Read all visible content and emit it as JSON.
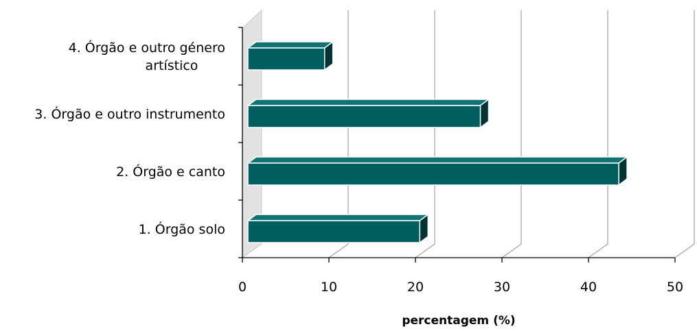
{
  "chart_data": {
    "type": "bar",
    "orientation": "horizontal",
    "style": "3d",
    "categories": [
      "1. Órgão solo",
      "2. Órgão e canto",
      "3. Órgão e outro instrumento",
      "4. Órgão e outro género artístico"
    ],
    "category_lines": [
      [
        "1. Órgão solo"
      ],
      [
        "2. Órgão e canto"
      ],
      [
        "3. Órgão e outro instrumento"
      ],
      [
        "4. Órgão e outro género",
        "artístico"
      ]
    ],
    "values": [
      20.5,
      43.5,
      27.5,
      9.5
    ],
    "xlim": [
      0,
      50
    ],
    "xticks": [
      0,
      10,
      20,
      30,
      40,
      50
    ],
    "xlabel": "percentagem (%)",
    "ylabel": "",
    "title": "",
    "grid": "vertical",
    "legend": "none",
    "colors": {
      "bar_front": "#006060",
      "bar_top": "#127373",
      "bar_side": "#003434",
      "bar_edge": "#ffffff",
      "gridline": "#a6a6a6",
      "axis": "#000000",
      "wall": "#e2e2e2"
    }
  }
}
